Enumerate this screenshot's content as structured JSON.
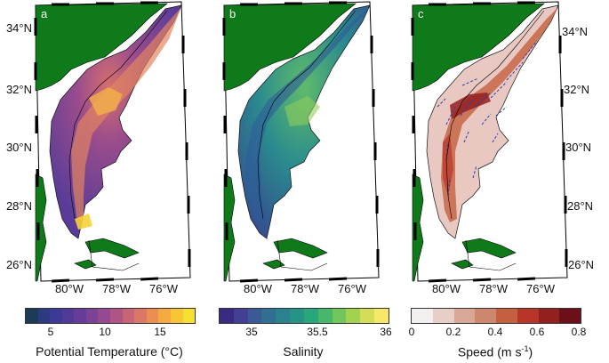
{
  "panels": [
    {
      "letter": "a",
      "kind": "temperature"
    },
    {
      "letter": "b",
      "kind": "salinity"
    },
    {
      "letter": "c",
      "kind": "speed"
    }
  ],
  "lat_labels": [
    "34°N",
    "32°N",
    "30°N",
    "28°N",
    "26°N"
  ],
  "lon_labels": [
    "80°W",
    "78°W",
    "76°W"
  ],
  "colorbars": [
    {
      "title": "Potential Temperature (°C)",
      "ticks": [
        "5",
        "10",
        "15"
      ],
      "colors": [
        "#1d3b57",
        "#2d3a80",
        "#3c3a95",
        "#4f3a98",
        "#663c98",
        "#7c4296",
        "#954a8f",
        "#ae5585",
        "#c76478",
        "#dc7766",
        "#ec8e52",
        "#f5a941",
        "#f8c534",
        "#f3e02f"
      ]
    },
    {
      "title": "Salinity",
      "ticks": [
        "35",
        "35.5",
        "36"
      ],
      "colors": [
        "#3b2a82",
        "#433f94",
        "#3a5a96",
        "#306f92",
        "#2a828e",
        "#259487",
        "#2aa67c",
        "#47b76b",
        "#72c55a",
        "#a2d24e",
        "#d3dd55",
        "#f6e86a"
      ]
    },
    {
      "title_main": "Speed (m s",
      "title_sup": "-1",
      "title_end": ")",
      "ticks": [
        "0",
        "0.2",
        "0.4",
        "0.6",
        "0.8"
      ],
      "colors": [
        "#f2efef",
        "#e7cfc8",
        "#d8a796",
        "#cc876e",
        "#c4603f",
        "#b83527",
        "#93201f",
        "#6b1019"
      ]
    }
  ],
  "colors": {
    "land": "#0f7a1a",
    "temp_fill": "#6a3f9a",
    "sal_fill": "#2d7a92",
    "speed_fill": "#e8c8c0",
    "vector": "#2a3fb0"
  }
}
